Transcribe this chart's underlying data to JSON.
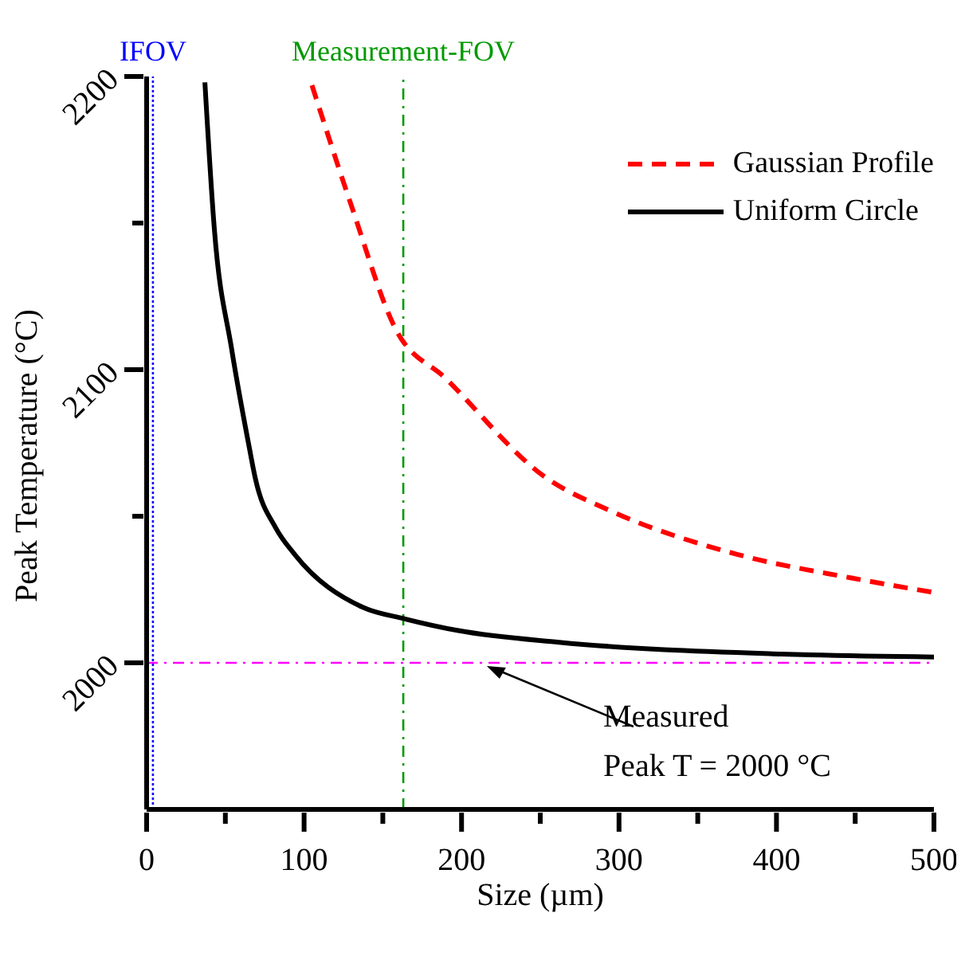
{
  "chart_data": {
    "type": "line",
    "xlabel": "Size (µm)",
    "ylabel": "Peak Temperature (°C)",
    "xlim": [
      0,
      500
    ],
    "ylim": [
      1950,
      2200
    ],
    "xticks": [
      0,
      {
        "value": 50,
        "label": null
      },
      100,
      {
        "value": 150,
        "label": null
      },
      200,
      {
        "value": 250,
        "label": null
      },
      300,
      {
        "value": 350,
        "label": null
      },
      400,
      {
        "value": 450,
        "label": null
      },
      500
    ],
    "yticks": [
      2000,
      {
        "value": 2050,
        "label": null
      },
      2100,
      {
        "value": 2150,
        "label": null
      },
      2200
    ],
    "grid": false,
    "legend": "top right",
    "marker": "none",
    "series": [
      {
        "name": "Gaussian Profile",
        "color": "#ff0000",
        "line_style": "dashed",
        "x": [
          105,
          130,
          158,
          190,
          254,
          294,
          375,
          447,
          500
        ],
        "values": [
          2197,
          2156,
          2114,
          2097,
          2063,
          2052,
          2037,
          2029,
          2024
        ]
      },
      {
        "name": "Uniform Circle",
        "color": "#000000",
        "line_style": "solid",
        "x": [
          37,
          43,
          54,
          65,
          69,
          82,
          94,
          137,
          164,
          198,
          262,
          403,
          500
        ],
        "values": [
          2198,
          2148,
          2107,
          2074,
          2063,
          2046,
          2037,
          2019,
          2015,
          2011,
          2007,
          2003,
          2002
        ]
      }
    ],
    "ref_lines": [
      {
        "axis": "x",
        "value": 4,
        "label": "IFOV",
        "color": "#0000ff",
        "line_style": "dotted"
      },
      {
        "axis": "x",
        "value": 163,
        "label": "Measurement-FOV",
        "color": "#009900",
        "line_style": "dashed"
      },
      {
        "axis": "y",
        "value": 2000,
        "color": "#ff00ff",
        "line_style": "dashed"
      }
    ],
    "annotations": [
      {
        "text": "Measured\nPeak T = 2000 °C",
        "x": 213,
        "y": 2000
      }
    ]
  }
}
